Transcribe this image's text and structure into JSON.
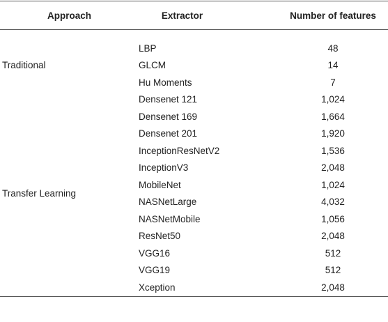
{
  "table": {
    "headers": [
      "Approach",
      "Extractor",
      "Number of features"
    ],
    "groups": [
      {
        "approach": "Traditional",
        "rows": [
          [
            "LBP",
            "48"
          ],
          [
            "GLCM",
            "14"
          ],
          [
            "Hu Moments",
            "7"
          ]
        ]
      },
      {
        "approach": "Transfer Learning",
        "rows": [
          [
            "Densenet 121",
            "1,024"
          ],
          [
            "Densenet 169",
            "1,664"
          ],
          [
            "Densenet 201",
            "1,920"
          ],
          [
            "InceptionResNetV2",
            "1,536"
          ],
          [
            "InceptionV3",
            "2,048"
          ],
          [
            "MobileNet",
            "1,024"
          ],
          [
            "NASNetLarge",
            "4,032"
          ],
          [
            "NASNetMobile",
            "1,056"
          ],
          [
            "ResNet50",
            "2,048"
          ],
          [
            "VGG16",
            "512"
          ],
          [
            "VGG19",
            "512"
          ],
          [
            "Xception",
            "2,048"
          ]
        ]
      }
    ]
  }
}
